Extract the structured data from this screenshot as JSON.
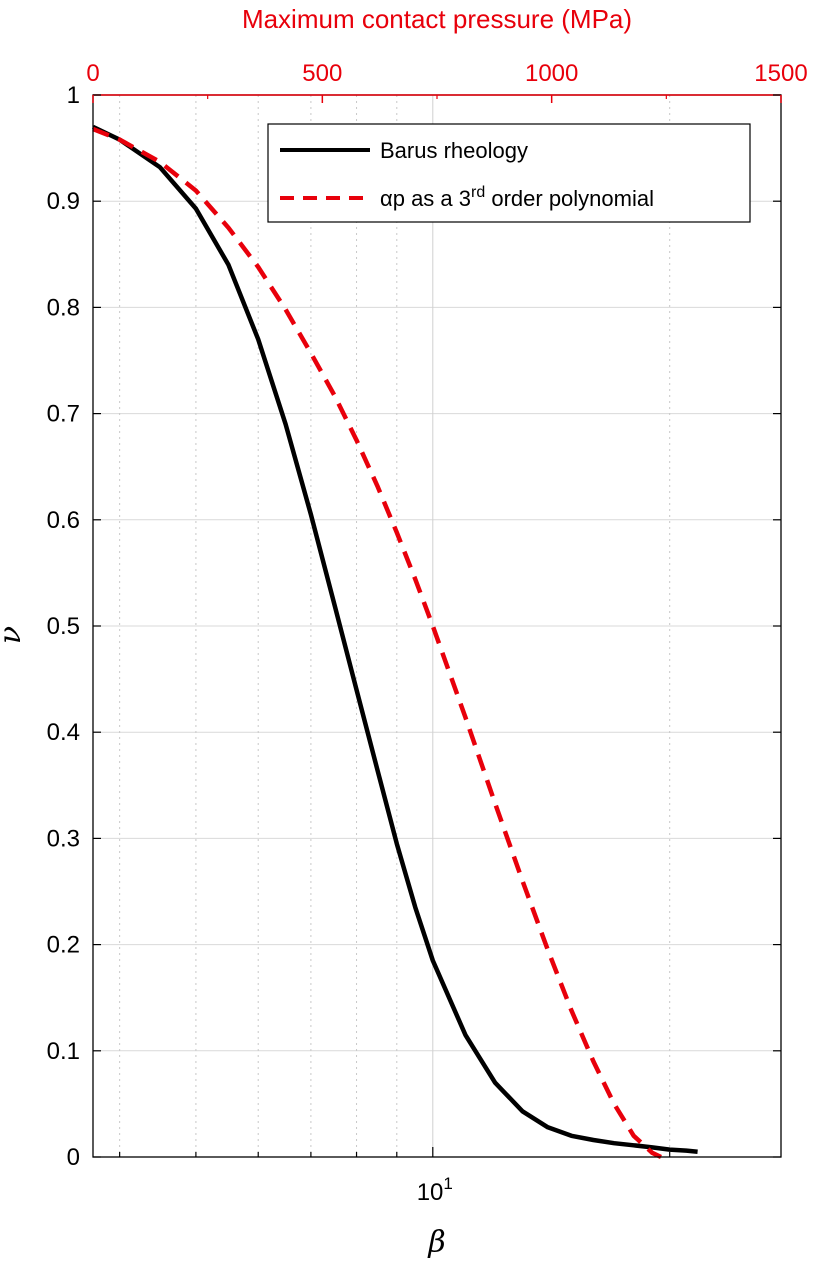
{
  "chart_data": {
    "type": "line",
    "xlabel": "β",
    "ylabel": "ν",
    "top_axis_label": "Maximum contact pressure (MPa)",
    "x_scale": "log",
    "xlim": [
      3.7,
      27.7
    ],
    "ylim": [
      0,
      1
    ],
    "y_ticks": [
      "0",
      "0.1",
      "0.2",
      "0.3",
      "0.4",
      "0.5",
      "0.6",
      "0.7",
      "0.8",
      "0.9",
      "1"
    ],
    "x_tick_label": {
      "base": "10",
      "exp": "1"
    },
    "top_axis": {
      "lim": [
        0,
        1500
      ],
      "ticks": [
        "0",
        "500",
        "1000",
        "1500"
      ]
    },
    "grid": true,
    "legend_position": "top-right",
    "series": [
      {
        "name": "Barus rheology",
        "color": "#000000",
        "style": "solid",
        "x": [
          3.7,
          4.0,
          4.5,
          5.0,
          5.5,
          6.0,
          6.5,
          7.0,
          7.5,
          8.0,
          8.5,
          9.0,
          9.5,
          10.0,
          11.0,
          12.0,
          13.0,
          14.0,
          15.0,
          16.0,
          17.0,
          18.0,
          19.0,
          20.0,
          21.0,
          21.7
        ],
        "y": [
          0.97,
          0.958,
          0.932,
          0.893,
          0.84,
          0.77,
          0.69,
          0.605,
          0.52,
          0.44,
          0.365,
          0.295,
          0.235,
          0.185,
          0.115,
          0.07,
          0.043,
          0.028,
          0.02,
          0.016,
          0.013,
          0.011,
          0.009,
          0.007,
          0.006,
          0.005
        ]
      },
      {
        "name_main": "αp as a 3",
        "name_sup": "rd",
        "name_rest": " order polynomial",
        "color": "#e8000b",
        "style": "dashed",
        "x": [
          3.7,
          4.0,
          4.5,
          5.0,
          5.5,
          6.0,
          6.5,
          7.0,
          7.5,
          8.0,
          8.5,
          9.0,
          9.5,
          10.0,
          11.0,
          12.0,
          13.0,
          14.0,
          15.0,
          16.0,
          17.0,
          18.0,
          19.0,
          19.5
        ],
        "y": [
          0.968,
          0.958,
          0.937,
          0.91,
          0.875,
          0.838,
          0.798,
          0.757,
          0.717,
          0.675,
          0.632,
          0.588,
          0.544,
          0.5,
          0.414,
          0.333,
          0.26,
          0.195,
          0.138,
          0.09,
          0.05,
          0.02,
          0.004,
          0.0
        ]
      }
    ]
  }
}
